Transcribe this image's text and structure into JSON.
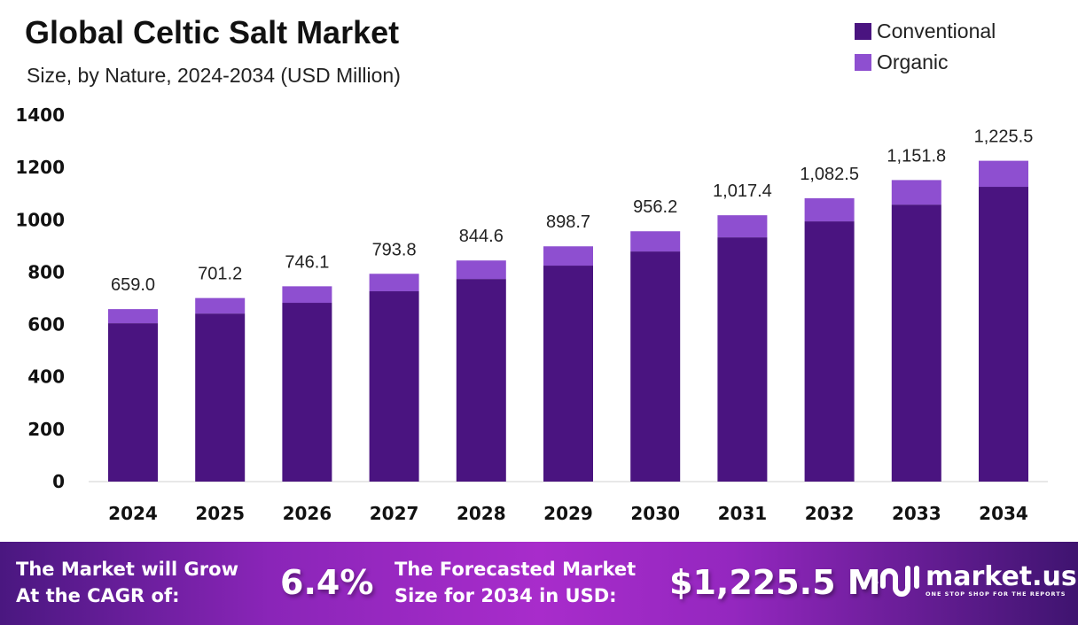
{
  "title": "Global Celtic Salt Market",
  "subtitle": "Size, by Nature, 2024-2034 (USD Million)",
  "colors": {
    "conventional": "#4a1480",
    "organic": "#8e4fd0"
  },
  "chart_data": {
    "type": "bar",
    "stacked": true,
    "categories": [
      "2024",
      "2025",
      "2026",
      "2027",
      "2028",
      "2029",
      "2030",
      "2031",
      "2032",
      "2033",
      "2034"
    ],
    "series": [
      {
        "name": "Conventional",
        "values": [
          605,
          642,
          683,
          727,
          774,
          825,
          879,
          933,
          994,
          1058,
          1126
        ]
      },
      {
        "name": "Organic",
        "values": [
          54,
          59.2,
          63.1,
          66.8,
          70.6,
          73.7,
          77.2,
          84.4,
          88.5,
          93.8,
          99.5
        ]
      }
    ],
    "totals": [
      659.0,
      701.2,
      746.1,
      793.8,
      844.6,
      898.7,
      956.2,
      1017.4,
      1082.5,
      1151.8,
      1225.5
    ],
    "total_labels": [
      "659.0",
      "701.2",
      "746.1",
      "793.8",
      "844.6",
      "898.7",
      "956.2",
      "1,017.4",
      "1,082.5",
      "1,151.8",
      "1,225.5"
    ],
    "ylim": [
      0,
      1400
    ],
    "yticks": [
      "0",
      "200",
      "400",
      "600",
      "800",
      "1000",
      "1200",
      "1400"
    ],
    "grid": false,
    "legend": "top-right"
  },
  "banner": {
    "cagr_label_1": "The Market will Grow",
    "cagr_label_2": "At the CAGR of:",
    "cagr_value": "6.4%",
    "forecast_label_1": "The Forecasted Market",
    "forecast_label_2": "Size for 2034 in USD:",
    "forecast_value": "$1,225.5 M",
    "logo_name": "market.us",
    "logo_tagline": "ONE STOP SHOP FOR THE REPORTS"
  }
}
